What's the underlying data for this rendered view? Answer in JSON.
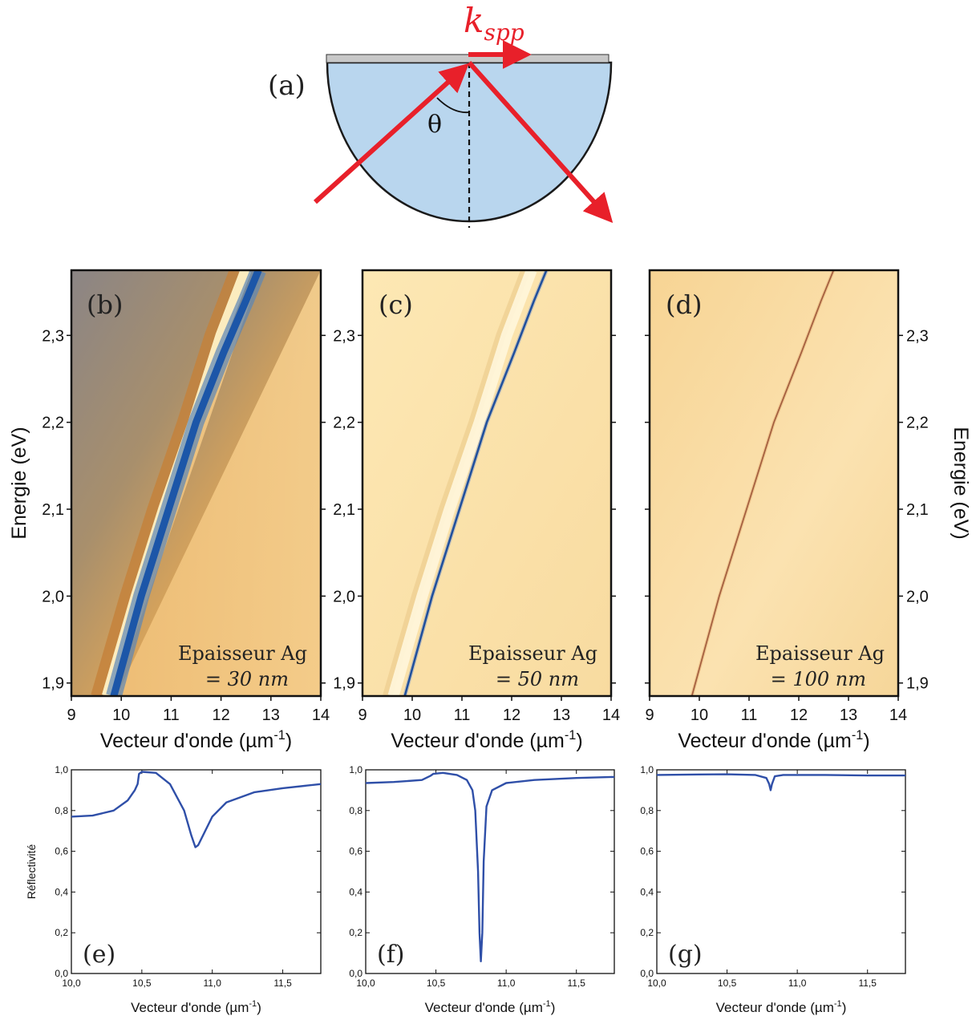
{
  "figure": {
    "panel_a_label": "(a)",
    "theta_symbol": "θ",
    "kspp_base": "k",
    "kspp_subscript": "spp",
    "colors": {
      "beam": "#e8202a",
      "prism": "#b9d6ee",
      "film": "#c8c8c8",
      "curve": "#2f4fa8"
    }
  },
  "chart_data": [
    {
      "panel": "(b)",
      "type": "heatmap",
      "xlabel": "Vecteur d'onde (µm",
      "xlabel_sup": "-1",
      "xlabel_close": ")",
      "ylabel": "Energie (eV)",
      "xlim": [
        9,
        14
      ],
      "ylim": [
        1.885,
        2.375
      ],
      "xticks": [
        "9",
        "10",
        "11",
        "12",
        "13",
        "14"
      ],
      "yticks": [
        "1,9",
        "2,0",
        "2,1",
        "2,2",
        "2,3"
      ],
      "annotation_line1": "Epaisseur Ag",
      "annotation_line2": "= 30 nm",
      "resonance": {
        "x": [
          9.85,
          10.4,
          10.95,
          11.5,
          12.05,
          12.5,
          12.75
        ],
        "y": [
          1.885,
          2.0,
          2.1,
          2.2,
          2.28,
          2.34,
          2.375
        ]
      },
      "critical_line": {
        "x": [
          9.62,
          10.2,
          10.75,
          11.35,
          11.9,
          12.4
        ],
        "y": [
          1.885,
          2.0,
          2.1,
          2.2,
          2.3,
          2.375
        ]
      }
    },
    {
      "panel": "(c)",
      "type": "heatmap",
      "xlabel": "Vecteur d'onde (µm",
      "xlabel_sup": "-1",
      "xlabel_close": ")",
      "ylabel": "",
      "xlim": [
        9,
        14
      ],
      "ylim": [
        1.885,
        2.375
      ],
      "xticks": [
        "9",
        "10",
        "11",
        "12",
        "13",
        "14"
      ],
      "yticks": [
        "1,9",
        "2,0",
        "2,1",
        "2,2",
        "2,3"
      ],
      "annotation_line1": "Epaisseur Ag",
      "annotation_line2": "= 50 nm",
      "resonance": {
        "x": [
          9.85,
          10.4,
          10.95,
          11.5,
          12.05,
          12.45,
          12.7
        ],
        "y": [
          1.885,
          2.0,
          2.1,
          2.2,
          2.28,
          2.34,
          2.375
        ]
      },
      "critical_line": {
        "x": [
          9.62,
          10.2,
          10.75,
          11.35,
          11.9,
          12.4
        ],
        "y": [
          1.885,
          2.0,
          2.1,
          2.2,
          2.3,
          2.375
        ]
      }
    },
    {
      "panel": "(d)",
      "type": "heatmap",
      "xlabel": "Vecteur d'onde (µm",
      "xlabel_sup": "-1",
      "xlabel_close": ")",
      "ylabel": "Energie (eV)",
      "xlim": [
        9,
        14
      ],
      "ylim": [
        1.885,
        2.375
      ],
      "xticks": [
        "9",
        "10",
        "11",
        "12",
        "13",
        "14"
      ],
      "yticks": [
        "1,9",
        "2,0",
        "2,1",
        "2,2",
        "2,3"
      ],
      "annotation_line1": "Epaisseur Ag",
      "annotation_line2": "= 100 nm",
      "resonance": {
        "x": [
          9.85,
          10.4,
          10.95,
          11.5,
          12.05,
          12.45,
          12.7
        ],
        "y": [
          1.885,
          2.0,
          2.1,
          2.2,
          2.28,
          2.34,
          2.375
        ]
      },
      "critical_line": {
        "x": [
          9.62,
          10.2,
          10.75,
          11.35,
          11.9,
          12.4
        ],
        "y": [
          1.885,
          2.0,
          2.1,
          2.2,
          2.3,
          2.375
        ]
      }
    },
    {
      "panel": "(e)",
      "type": "line",
      "xlabel": "Vecteur d'onde (µm",
      "xlabel_sup": "-1",
      "xlabel_close": ")",
      "ylabel": "Réflectivité",
      "xlim": [
        10.0,
        11.77
      ],
      "ylim": [
        0.0,
        1.0
      ],
      "xticks": [
        {
          "v": 10.0,
          "t": "10,0"
        },
        {
          "v": 10.5,
          "t": "10,5"
        },
        {
          "v": 11.0,
          "t": "11,0"
        },
        {
          "v": 11.5,
          "t": "11,5"
        }
      ],
      "yticks": [
        {
          "v": 0.0,
          "t": "0,0"
        },
        {
          "v": 0.2,
          "t": "0,2"
        },
        {
          "v": 0.4,
          "t": "0,4"
        },
        {
          "v": 0.6,
          "t": "0,6"
        },
        {
          "v": 0.8,
          "t": "0,8"
        },
        {
          "v": 1.0,
          "t": "1,0"
        }
      ],
      "series": [
        {
          "x": [
            10.0,
            10.15,
            10.3,
            10.4,
            10.45,
            10.47,
            10.48,
            10.5,
            10.6,
            10.7,
            10.8,
            10.85,
            10.88,
            10.9,
            10.95,
            11.0,
            11.1,
            11.3,
            11.5,
            11.77
          ],
          "y": [
            0.77,
            0.775,
            0.8,
            0.85,
            0.9,
            0.93,
            0.98,
            0.99,
            0.985,
            0.93,
            0.8,
            0.68,
            0.62,
            0.63,
            0.7,
            0.77,
            0.84,
            0.89,
            0.91,
            0.93
          ]
        }
      ]
    },
    {
      "panel": "(f)",
      "type": "line",
      "xlabel": "Vecteur d'onde (µm",
      "xlabel_sup": "-1",
      "xlabel_close": ")",
      "ylabel": "",
      "xlim": [
        10.0,
        11.77
      ],
      "ylim": [
        0.0,
        1.0
      ],
      "xticks": [
        {
          "v": 10.0,
          "t": "10,0"
        },
        {
          "v": 10.5,
          "t": "10,5"
        },
        {
          "v": 11.0,
          "t": "11,0"
        },
        {
          "v": 11.5,
          "t": "11,5"
        }
      ],
      "yticks": [
        {
          "v": 0.0,
          "t": "0,0"
        },
        {
          "v": 0.2,
          "t": "0,2"
        },
        {
          "v": 0.4,
          "t": "0,4"
        },
        {
          "v": 0.6,
          "t": "0,6"
        },
        {
          "v": 0.8,
          "t": "0,8"
        },
        {
          "v": 1.0,
          "t": "1,0"
        }
      ],
      "series": [
        {
          "x": [
            10.0,
            10.2,
            10.4,
            10.46,
            10.48,
            10.55,
            10.65,
            10.72,
            10.76,
            10.78,
            10.8,
            10.81,
            10.82,
            10.83,
            10.84,
            10.86,
            10.9,
            11.0,
            11.2,
            11.5,
            11.77
          ],
          "y": [
            0.935,
            0.94,
            0.95,
            0.97,
            0.98,
            0.985,
            0.975,
            0.95,
            0.9,
            0.8,
            0.5,
            0.2,
            0.06,
            0.2,
            0.55,
            0.82,
            0.9,
            0.935,
            0.95,
            0.96,
            0.965
          ]
        }
      ]
    },
    {
      "panel": "(g)",
      "type": "line",
      "xlabel": "Vecteur d'onde (µm",
      "xlabel_sup": "-1",
      "xlabel_close": ")",
      "ylabel": "",
      "xlim": [
        10.0,
        11.77
      ],
      "ylim": [
        0.0,
        1.0
      ],
      "xticks": [
        {
          "v": 10.0,
          "t": "10,0"
        },
        {
          "v": 10.5,
          "t": "10,5"
        },
        {
          "v": 11.0,
          "t": "11,0"
        },
        {
          "v": 11.5,
          "t": "11,5"
        }
      ],
      "yticks": [
        {
          "v": 0.0,
          "t": "0,0"
        },
        {
          "v": 0.2,
          "t": "0,2"
        },
        {
          "v": 0.4,
          "t": "0,4"
        },
        {
          "v": 0.6,
          "t": "0,6"
        },
        {
          "v": 0.8,
          "t": "0,8"
        },
        {
          "v": 1.0,
          "t": "1,0"
        }
      ],
      "series": [
        {
          "x": [
            10.0,
            10.3,
            10.5,
            10.7,
            10.78,
            10.8,
            10.81,
            10.82,
            10.84,
            10.9,
            11.2,
            11.5,
            11.77
          ],
          "y": [
            0.975,
            0.977,
            0.978,
            0.975,
            0.96,
            0.93,
            0.9,
            0.93,
            0.968,
            0.975,
            0.975,
            0.972,
            0.972
          ]
        }
      ]
    }
  ]
}
